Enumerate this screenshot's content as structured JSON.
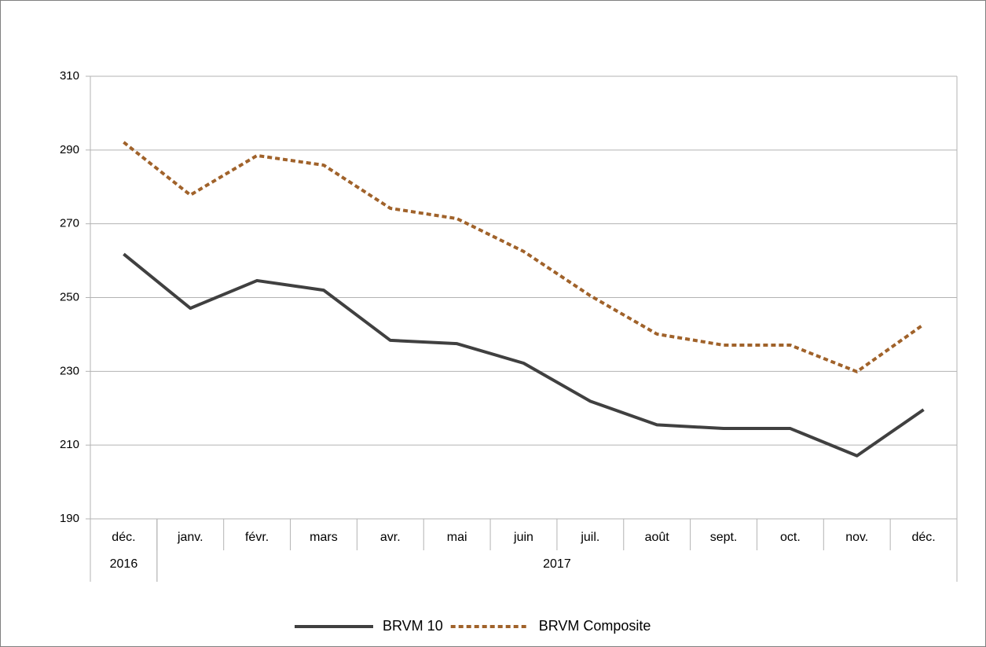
{
  "chart_data": {
    "type": "line",
    "categories": [
      "déc.",
      "janv.",
      "févr.",
      "mars",
      "avr.",
      "mai",
      "juin",
      "juil.",
      "août",
      "sept.",
      "oct.",
      "nov.",
      "déc."
    ],
    "groups": [
      {
        "label": "2016",
        "count": 1
      },
      {
        "label": "2017",
        "count": 12
      }
    ],
    "series": [
      {
        "name": "BRVM 10",
        "color": "#404040",
        "dashed": false,
        "values": [
          261.8,
          247.1,
          254.6,
          252.0,
          238.4,
          237.5,
          232.2,
          221.9,
          215.5,
          214.5,
          214.5,
          207.1,
          219.6
        ]
      },
      {
        "name": "BRVM Composite",
        "color": "#a0622a",
        "dashed": true,
        "values": [
          292.1,
          277.8,
          288.5,
          285.9,
          274.2,
          271.4,
          262.5,
          250.5,
          240.1,
          237.1,
          237.1,
          229.9,
          242.7
        ]
      }
    ],
    "ylim": [
      190,
      310
    ],
    "yticks": [
      190,
      210,
      230,
      250,
      270,
      290,
      310
    ],
    "grid": true,
    "legend": "bottom"
  }
}
